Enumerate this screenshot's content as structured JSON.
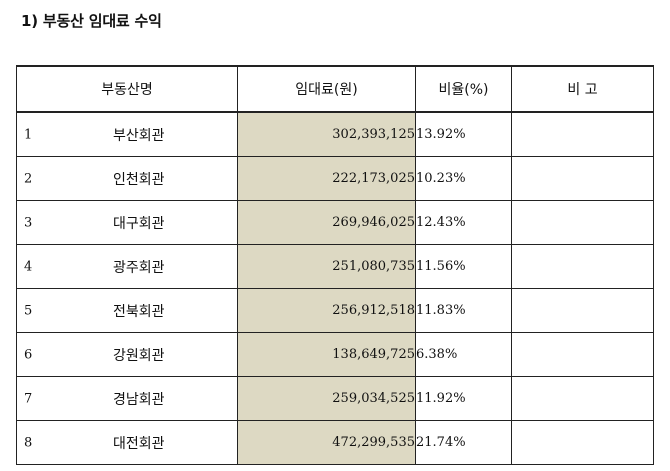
{
  "section_title": "1) 부동산 임대료 수익",
  "table": {
    "headers": {
      "name": "부동산명",
      "amount": "임대료(원)",
      "ratio": "비율(%)",
      "note": "비 고"
    },
    "rows": [
      {
        "no": "1",
        "name": "부산회관",
        "amount": "302,393,125",
        "ratio": "13.92%",
        "note": ""
      },
      {
        "no": "2",
        "name": "인천회관",
        "amount": "222,173,025",
        "ratio": "10.23%",
        "note": ""
      },
      {
        "no": "3",
        "name": "대구회관",
        "amount": "269,946,025",
        "ratio": "12.43%",
        "note": ""
      },
      {
        "no": "4",
        "name": "광주회관",
        "amount": "251,080,735",
        "ratio": "11.56%",
        "note": ""
      },
      {
        "no": "5",
        "name": "전북회관",
        "amount": "256,912,518",
        "ratio": "11.83%",
        "note": ""
      },
      {
        "no": "6",
        "name": "강원회관",
        "amount": "138,649,725",
        "ratio": "6.38%",
        "note": ""
      },
      {
        "no": "7",
        "name": "경남회관",
        "amount": "259,034,525",
        "ratio": "11.92%",
        "note": ""
      },
      {
        "no": "8",
        "name": "대전회관",
        "amount": "472,299,535",
        "ratio": "21.74%",
        "note": ""
      }
    ]
  },
  "colors": {
    "amount_fill": "#ddd9c3",
    "border": "#222222"
  }
}
